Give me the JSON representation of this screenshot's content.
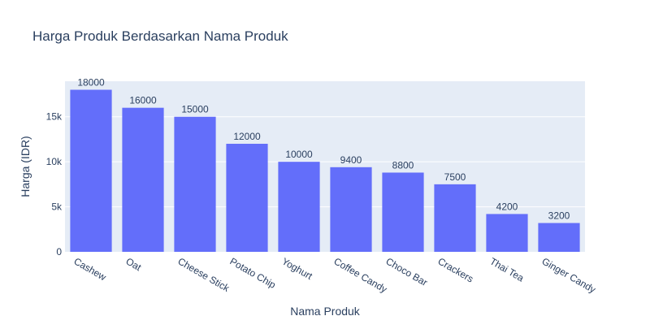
{
  "chart_data": {
    "type": "bar",
    "title": "Harga Produk Berdasarkan Nama Produk",
    "xlabel": "Nama Produk",
    "ylabel": "Harga (IDR)",
    "categories": [
      "Cashew",
      "Oat",
      "Cheese Stick",
      "Potato Chip",
      "Yoghurt",
      "Coffee Candy",
      "Choco Bar",
      "Crackers",
      "Thai Tea",
      "Ginger Candy"
    ],
    "values": [
      18000,
      16000,
      15000,
      12000,
      10000,
      9400,
      8800,
      7500,
      4200,
      3200
    ],
    "data_labels": [
      "18000",
      "16000",
      "15000",
      "12000",
      "10000",
      "9400",
      "8800",
      "7500",
      "4200",
      "3200"
    ],
    "ylim": [
      0,
      18947
    ],
    "y_ticks": [
      0,
      5000,
      10000,
      15000
    ],
    "y_tick_labels": [
      "0",
      "5k",
      "10k",
      "15k"
    ],
    "grid": true,
    "colors": {
      "bar": "#636efa",
      "plot_background": "#e5ecf6",
      "gridline": "#ffffff",
      "text": "#2a3f5f"
    }
  }
}
